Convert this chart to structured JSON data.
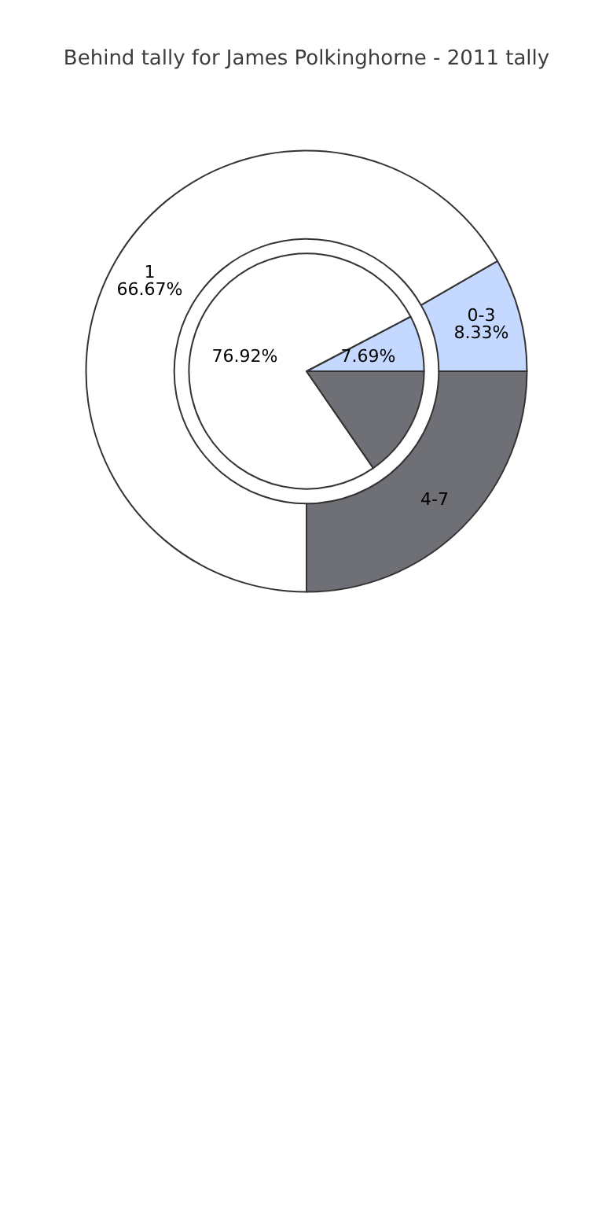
{
  "chart_data": {
    "type": "pie",
    "title": "Behind tally for James Polkinghorne - 2011 tally",
    "categories": [
      "0-3",
      "1",
      "4-7"
    ],
    "colors": [
      "#c5d8ff",
      "#ffffff",
      "#6e7075"
    ],
    "series": [
      {
        "values": [
          7.69,
          76.92,
          15.39
        ],
        "value_labels": [
          "7.69%",
          "76.92%",
          null
        ]
      },
      {
        "values": [
          8.33,
          66.67,
          25
        ],
        "value_labels": [
          "8.33%",
          "66.67%",
          null
        ]
      }
    ],
    "legend": false
  }
}
